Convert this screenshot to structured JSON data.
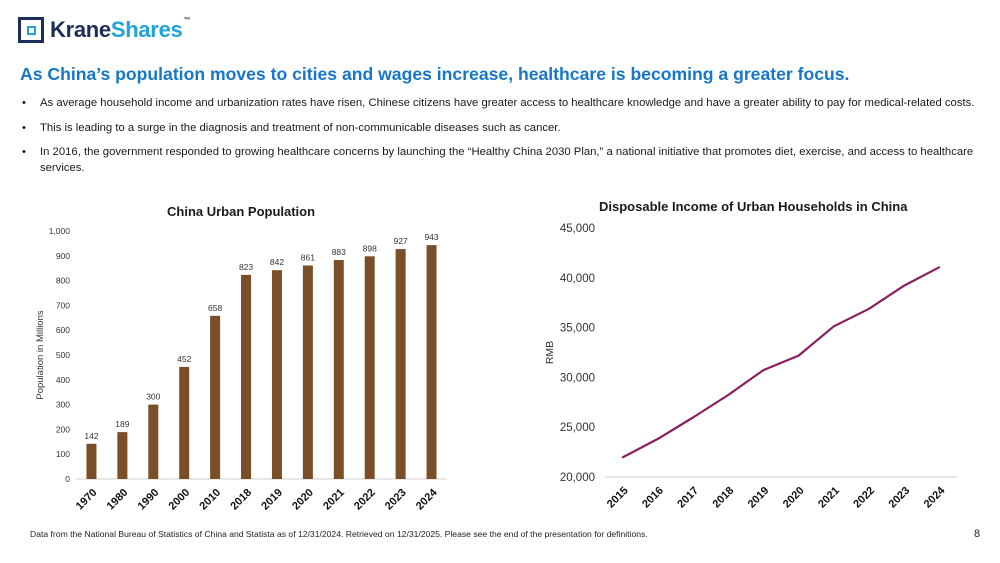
{
  "logo": {
    "text_main": "Krane",
    "text_accent": "Shares",
    "tm": "™"
  },
  "headline": "As China’s population moves to cities and wages increase, healthcare is becoming a greater focus.",
  "bullets": [
    "As average household income and urbanization rates have risen, Chinese citizens have greater access to healthcare knowledge and have a greater ability to pay for medical-related costs.",
    "This is leading to a surge in the diagnosis and treatment of non-communicable diseases such as cancer.",
    "In 2016, the government responded to growing healthcare concerns by launching the “Healthy China 2030 Plan,” a national initiative that promotes diet, exercise, and access to healthcare services."
  ],
  "chart_data": [
    {
      "type": "bar",
      "title": "China Urban Population",
      "ylabel": "Population in Millions",
      "xlabel": "",
      "categories": [
        "1970",
        "1980",
        "1990",
        "2000",
        "2010",
        "2018",
        "2019",
        "2020",
        "2021",
        "2022",
        "2023",
        "2024"
      ],
      "values": [
        142,
        189,
        300,
        452,
        658,
        823,
        842,
        861,
        883,
        898,
        927,
        943
      ],
      "ylim": [
        0,
        1000
      ],
      "yticks": [
        "0",
        "100",
        "200",
        "300",
        "400",
        "500",
        "600",
        "700",
        "800",
        "900",
        "1,000"
      ],
      "data_labels": [
        "142",
        "189",
        "300",
        "452",
        "658",
        "823",
        "842",
        "861",
        "883",
        "898",
        "927",
        "943"
      ],
      "color": "#7a4f27",
      "grid": false
    },
    {
      "type": "line",
      "title": "Disposable Income of Urban Households in China",
      "ylabel": "RMB",
      "xlabel": "",
      "categories": [
        "2015",
        "2016",
        "2017",
        "2018",
        "2019",
        "2020",
        "2021",
        "2022",
        "2023",
        "2024"
      ],
      "values": [
        21966,
        23821,
        25974,
        28228,
        30733,
        32189,
        35128,
        36883,
        39218,
        41069
      ],
      "ylim": [
        20000,
        45000
      ],
      "yticks": [
        "20,000",
        "25,000",
        "30,000",
        "35,000",
        "40,000",
        "45,000"
      ],
      "color": "#8b1e5e",
      "grid": false
    }
  ],
  "footnote": "Data from the National Bureau of Statistics of China and Statista as of 12/31/2024. Retrieved on 12/31/2025. Please see the end of the presentation for definitions.",
  "page_number": "8"
}
